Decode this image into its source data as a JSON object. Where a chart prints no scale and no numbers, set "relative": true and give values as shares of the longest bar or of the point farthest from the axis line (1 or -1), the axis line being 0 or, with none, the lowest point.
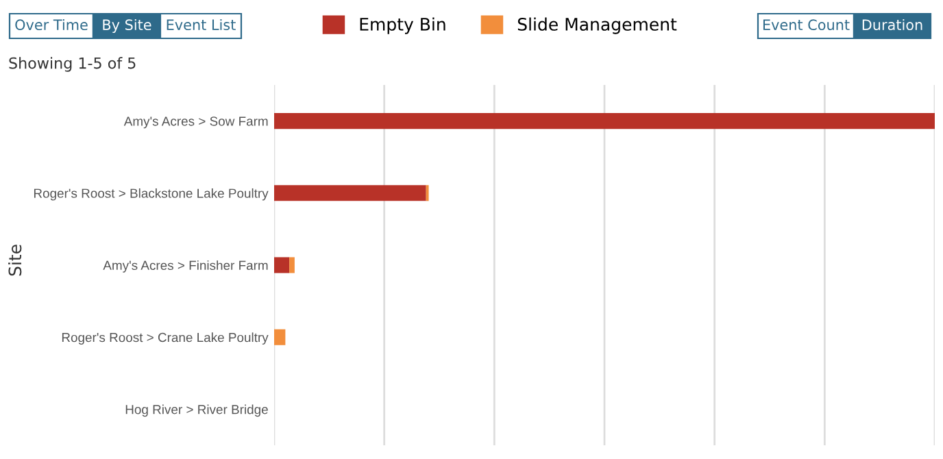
{
  "chart_data": {
    "type": "bar",
    "orientation": "horizontal",
    "stacked": true,
    "relative": true,
    "ylabel": "Site",
    "categories": [
      "Amy's Acres > Sow Farm",
      "Roger's Roost > Blackstone Lake Poultry",
      "Amy's Acres > Finisher Farm",
      "Roger's Roost > Crane Lake Poultry",
      "Hog River > River Bridge"
    ],
    "series": [
      {
        "name": "Empty Bin",
        "color": "#b83228",
        "values": [
          1,
          0.23,
          0.023,
          0,
          0
        ]
      },
      {
        "name": "Slide Management",
        "color": "#f28e3c",
        "values": [
          0,
          0.004,
          0.008,
          0.017,
          0
        ]
      }
    ],
    "legend": "top",
    "grid": "x",
    "annotations": [
      "Over Time",
      "By Site",
      "Event List",
      "Event Count",
      "Duration",
      "Showing 1-5 of 5"
    ]
  }
}
